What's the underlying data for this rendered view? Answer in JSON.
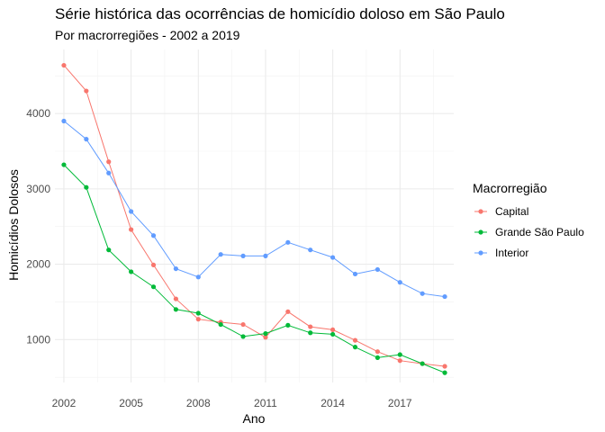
{
  "chart_data": {
    "type": "line",
    "title": "Série histórica das ocorrências de homicídio doloso em São Paulo",
    "subtitle": "Por macrorregiões - 2002 a 2019",
    "xlabel": "Ano",
    "ylabel": "Homicídios Dolosos",
    "xlim": [
      2001.6,
      2019.4
    ],
    "ylim": [
      430,
      4850
    ],
    "x_ticks": [
      2002,
      2005,
      2008,
      2011,
      2014,
      2017
    ],
    "y_ticks": [
      1000,
      2000,
      3000,
      4000
    ],
    "grid": true,
    "legend_title": "Macrorregião",
    "legend_position": "right",
    "x": [
      2002,
      2003,
      2004,
      2005,
      2006,
      2007,
      2008,
      2009,
      2010,
      2011,
      2012,
      2013,
      2014,
      2015,
      2016,
      2017,
      2018,
      2019
    ],
    "series": [
      {
        "name": "Capital",
        "color": "#F8766D",
        "values": [
          4640,
          4300,
          3360,
          2460,
          1990,
          1540,
          1270,
          1230,
          1200,
          1030,
          1370,
          1170,
          1130,
          990,
          840,
          720,
          680,
          645
        ]
      },
      {
        "name": "Grande São Paulo",
        "color": "#00BA38",
        "values": [
          3320,
          3020,
          2190,
          1900,
          1700,
          1400,
          1350,
          1200,
          1040,
          1080,
          1190,
          1090,
          1070,
          900,
          760,
          800,
          680,
          560
        ]
      },
      {
        "name": "Interior",
        "color": "#619CFF",
        "values": [
          3900,
          3660,
          3210,
          2700,
          2380,
          1940,
          1830,
          2130,
          2110,
          2110,
          2290,
          2190,
          2090,
          1870,
          1930,
          1760,
          1610,
          1570
        ]
      }
    ]
  }
}
